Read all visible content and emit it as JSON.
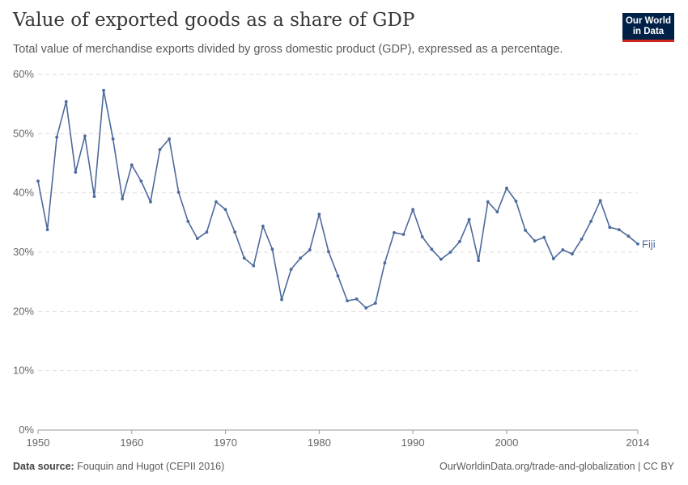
{
  "header": {
    "title": "Value of exported goods as a share of GDP",
    "subtitle": "Total value of merchandise exports divided by gross domestic product (GDP), expressed as a percentage.",
    "logo": "Our World in Data"
  },
  "footer": {
    "source_label": "Data source:",
    "source": "Fouquin and Hugot (CEPII 2016)",
    "link": "OurWorldinData.org/trade-and-globalization | CC BY"
  },
  "chart_data": {
    "type": "line",
    "title": "Value of exported goods as a share of GDP",
    "xlabel": "",
    "ylabel": "",
    "xlim": [
      1950,
      2014
    ],
    "ylim": [
      0,
      60
    ],
    "grid": "horizontal dashed",
    "x_ticks": [
      "1950",
      "1960",
      "1970",
      "1980",
      "1990",
      "2000",
      "2014"
    ],
    "y_ticks": [
      "0%",
      "10%",
      "20%",
      "30%",
      "40%",
      "50%",
      "60%"
    ],
    "series": [
      {
        "name": "Fiji",
        "color": "#4c6a9c",
        "x": [
          1950,
          1951,
          1952,
          1953,
          1954,
          1955,
          1956,
          1957,
          1958,
          1959,
          1960,
          1961,
          1962,
          1963,
          1964,
          1965,
          1966,
          1967,
          1968,
          1969,
          1970,
          1971,
          1972,
          1973,
          1974,
          1975,
          1976,
          1977,
          1978,
          1979,
          1980,
          1981,
          1982,
          1983,
          1984,
          1985,
          1986,
          1987,
          1988,
          1989,
          1990,
          1991,
          1992,
          1993,
          1994,
          1995,
          1996,
          1997,
          1998,
          1999,
          2000,
          2001,
          2002,
          2003,
          2004,
          2005,
          2006,
          2007,
          2008,
          2009,
          2010,
          2011,
          2012,
          2013,
          2014
        ],
        "values": [
          42.0,
          33.8,
          49.4,
          55.4,
          43.5,
          49.6,
          39.4,
          57.3,
          49.1,
          39.0,
          44.7,
          42.0,
          38.5,
          47.3,
          49.1,
          40.1,
          35.2,
          32.3,
          33.4,
          38.5,
          37.2,
          33.4,
          29.0,
          27.7,
          34.4,
          30.5,
          22.0,
          27.1,
          29.0,
          30.4,
          36.4,
          30.1,
          26.0,
          21.8,
          22.1,
          20.6,
          21.4,
          28.2,
          33.3,
          33.0,
          37.2,
          32.6,
          30.5,
          28.8,
          30.0,
          31.8,
          35.5,
          28.6,
          38.5,
          36.8,
          40.8,
          38.6,
          33.7,
          31.9,
          32.5,
          28.9,
          30.4,
          29.7,
          32.2,
          35.2,
          38.7,
          34.2,
          33.8,
          32.7,
          31.4
        ]
      }
    ]
  }
}
